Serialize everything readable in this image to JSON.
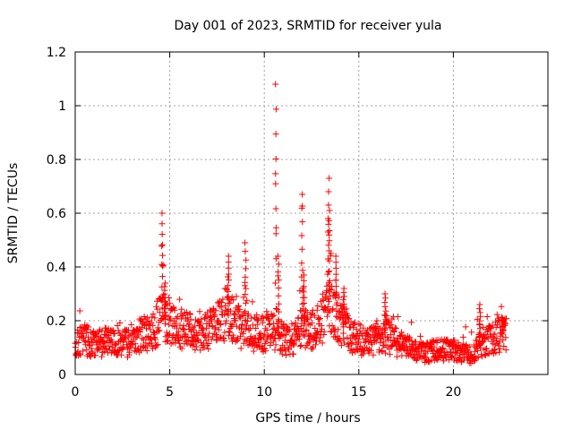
{
  "chart_data": {
    "type": "scatter",
    "title": "Day 001 of 2023, SRMTID for receiver yula",
    "xlabel": "GPS time / hours",
    "ylabel": "SRMTID / TECUs",
    "xlim": [
      0,
      25
    ],
    "ylim": [
      0,
      1.2
    ],
    "x_ticks": [
      0,
      5,
      10,
      15,
      20
    ],
    "x_tick_labels": [
      "0",
      "5",
      "10",
      "15",
      "20"
    ],
    "y_ticks": [
      0,
      0.2,
      0.4,
      0.6,
      0.8,
      1.0,
      1.2
    ],
    "y_tick_labels": [
      "0",
      "0.2",
      "0.4",
      "0.6",
      "0.8",
      "1",
      "1.2"
    ],
    "grid": true,
    "marker": "plus",
    "series": [
      {
        "name": "SRMTID",
        "color": "#ff0000",
        "profile": [
          [
            0.0,
            0.12
          ],
          [
            0.5,
            0.13
          ],
          [
            1.0,
            0.11
          ],
          [
            1.5,
            0.12
          ],
          [
            2.0,
            0.13
          ],
          [
            2.5,
            0.12
          ],
          [
            3.0,
            0.11
          ],
          [
            3.5,
            0.15
          ],
          [
            4.0,
            0.15
          ],
          [
            4.5,
            0.21
          ],
          [
            5.0,
            0.2
          ],
          [
            5.5,
            0.17
          ],
          [
            6.0,
            0.16
          ],
          [
            6.5,
            0.14
          ],
          [
            7.0,
            0.16
          ],
          [
            7.5,
            0.19
          ],
          [
            8.0,
            0.23
          ],
          [
            8.5,
            0.18
          ],
          [
            9.0,
            0.17
          ],
          [
            9.5,
            0.15
          ],
          [
            10.0,
            0.15
          ],
          [
            10.5,
            0.16
          ],
          [
            11.0,
            0.13
          ],
          [
            11.5,
            0.13
          ],
          [
            12.0,
            0.16
          ],
          [
            12.5,
            0.16
          ],
          [
            13.0,
            0.2
          ],
          [
            13.5,
            0.24
          ],
          [
            14.0,
            0.2
          ],
          [
            14.5,
            0.14
          ],
          [
            15.0,
            0.13
          ],
          [
            15.5,
            0.12
          ],
          [
            16.0,
            0.14
          ],
          [
            16.5,
            0.14
          ],
          [
            17.0,
            0.12
          ],
          [
            17.5,
            0.1
          ],
          [
            18.0,
            0.09
          ],
          [
            18.5,
            0.08
          ],
          [
            19.0,
            0.09
          ],
          [
            19.5,
            0.09
          ],
          [
            20.0,
            0.09
          ],
          [
            20.5,
            0.08
          ],
          [
            21.0,
            0.07
          ],
          [
            21.5,
            0.12
          ],
          [
            22.0,
            0.13
          ],
          [
            22.5,
            0.15
          ],
          [
            22.7,
            0.15
          ]
        ],
        "peaks": [
          {
            "x": 4.6,
            "y": 0.6
          },
          {
            "x": 4.75,
            "y": 0.34
          },
          {
            "x": 8.1,
            "y": 0.44
          },
          {
            "x": 9.0,
            "y": 0.49
          },
          {
            "x": 10.6,
            "y": 1.08
          },
          {
            "x": 10.75,
            "y": 0.44
          },
          {
            "x": 12.0,
            "y": 0.67
          },
          {
            "x": 12.1,
            "y": 0.37
          },
          {
            "x": 13.4,
            "y": 0.73
          },
          {
            "x": 13.45,
            "y": 0.61
          },
          {
            "x": 13.8,
            "y": 0.44
          },
          {
            "x": 14.2,
            "y": 0.32
          },
          {
            "x": 16.4,
            "y": 0.3
          },
          {
            "x": 21.4,
            "y": 0.26
          },
          {
            "x": 22.6,
            "y": 0.21
          }
        ],
        "x_end": 22.8
      }
    ]
  }
}
